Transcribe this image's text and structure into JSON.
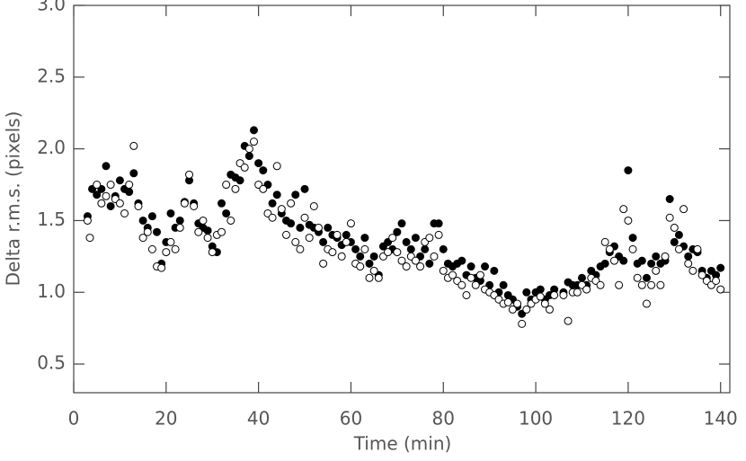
{
  "chart_data": {
    "type": "scatter",
    "x_label": "Time (min)",
    "y_label": "Delta r.m.s. (pixels)",
    "xlim": [
      0,
      142
    ],
    "ylim": [
      0.3,
      3.0
    ],
    "xticks": [
      0,
      20,
      40,
      60,
      80,
      100,
      120,
      140
    ],
    "yticks": [
      0.5,
      {
        "value": 1.0,
        "label": "1.0"
      },
      1.5,
      {
        "value": 2.0,
        "label": "2.0"
      },
      2.5,
      {
        "value": 3.0,
        "label": "3.0"
      }
    ],
    "series": [
      {
        "color": "#000000",
        "marker": "filled",
        "x": [
          3,
          4,
          5,
          6,
          7,
          8,
          9,
          10,
          11,
          12,
          13,
          14,
          15,
          16,
          17,
          18,
          19,
          20,
          21,
          22,
          23,
          24,
          25,
          26,
          27,
          28,
          29,
          30,
          31,
          32,
          33,
          34,
          35,
          36,
          37,
          38,
          39,
          40,
          41,
          42,
          43,
          44,
          45,
          46,
          47,
          48,
          49,
          50,
          51,
          52,
          53,
          54,
          55,
          56,
          57,
          58,
          59,
          60,
          61,
          62,
          63,
          64,
          65,
          66,
          67,
          68,
          69,
          70,
          71,
          72,
          73,
          74,
          75,
          76,
          77,
          78,
          79,
          80,
          81,
          82,
          83,
          84,
          85,
          86,
          87,
          88,
          89,
          90,
          91,
          92,
          93,
          94,
          95,
          96,
          97,
          98,
          99,
          100,
          101,
          102,
          103,
          104,
          106,
          107,
          108,
          109,
          110,
          111,
          112,
          113,
          114,
          115,
          116,
          117,
          118,
          119,
          120,
          121,
          122,
          123,
          124,
          125,
          126,
          127,
          128,
          129,
          130,
          131,
          132,
          133,
          134,
          135,
          136,
          137,
          138,
          139,
          140
        ],
        "values": [
          1.53,
          1.72,
          1.68,
          1.72,
          1.88,
          1.6,
          1.67,
          1.78,
          1.72,
          1.7,
          1.83,
          1.62,
          1.5,
          1.45,
          1.53,
          1.42,
          1.2,
          1.35,
          1.55,
          1.45,
          1.5,
          1.63,
          1.78,
          1.62,
          1.48,
          1.45,
          1.43,
          1.32,
          1.28,
          1.62,
          1.55,
          1.82,
          1.8,
          1.78,
          2.02,
          1.95,
          2.13,
          1.9,
          1.85,
          1.75,
          1.62,
          1.68,
          1.55,
          1.5,
          1.48,
          1.68,
          1.45,
          1.72,
          1.47,
          1.45,
          1.42,
          1.35,
          1.45,
          1.4,
          1.38,
          1.33,
          1.4,
          1.35,
          1.3,
          1.25,
          1.38,
          1.2,
          1.25,
          1.12,
          1.32,
          1.35,
          1.3,
          1.42,
          1.48,
          1.35,
          1.3,
          1.38,
          1.25,
          1.3,
          1.2,
          1.48,
          1.48,
          1.3,
          1.2,
          1.18,
          1.2,
          1.22,
          1.12,
          1.18,
          1.1,
          1.08,
          1.18,
          1.05,
          1.15,
          1.0,
          1.05,
          0.98,
          0.95,
          0.9,
          0.85,
          1.0,
          0.95,
          1.0,
          1.02,
          0.95,
          0.98,
          1.02,
          1.0,
          1.07,
          1.05,
          1.05,
          1.1,
          1.05,
          1.15,
          1.12,
          1.18,
          1.2,
          1.28,
          1.32,
          1.25,
          1.22,
          1.85,
          1.38,
          1.2,
          1.22,
          1.1,
          1.2,
          1.25,
          1.2,
          1.22,
          1.65,
          1.35,
          1.4,
          1.32,
          1.25,
          1.3,
          1.28,
          1.15,
          1.1,
          1.15,
          1.12,
          1.17
        ]
      },
      {
        "color": "#000000",
        "marker": "open",
        "x": [
          3,
          3.5,
          5,
          6,
          7,
          8,
          9,
          10,
          11,
          12,
          13,
          14,
          15,
          16,
          17,
          18,
          19,
          20,
          21,
          22,
          23,
          24,
          25,
          26,
          27,
          28,
          29,
          30,
          31,
          32,
          33,
          34,
          35,
          36,
          37,
          38,
          39,
          40,
          41,
          42,
          43,
          44,
          45,
          46,
          47,
          48,
          49,
          50,
          51,
          52,
          53,
          54,
          55,
          56,
          57,
          58,
          59,
          60,
          61,
          62,
          63,
          64,
          65,
          66,
          67,
          68,
          69,
          70,
          71,
          72,
          73,
          74,
          75,
          76,
          77,
          78,
          79,
          80,
          81,
          82,
          83,
          84,
          85,
          86,
          87,
          88,
          89,
          90,
          91,
          92,
          93,
          94,
          95,
          96,
          97,
          98,
          99,
          100,
          101,
          102,
          103,
          104,
          106,
          107,
          108,
          109,
          110,
          111,
          112,
          113,
          114,
          115,
          116,
          117,
          118,
          119,
          120,
          121,
          122,
          123,
          124,
          125,
          126,
          127,
          128,
          129,
          130,
          131,
          132,
          133,
          134,
          135,
          136,
          137,
          138,
          139,
          140
        ],
        "values": [
          1.5,
          1.38,
          1.75,
          1.62,
          1.67,
          1.75,
          1.65,
          1.62,
          1.55,
          1.75,
          2.02,
          1.6,
          1.38,
          1.42,
          1.3,
          1.18,
          1.17,
          1.28,
          1.35,
          1.3,
          1.45,
          1.62,
          1.82,
          1.6,
          1.42,
          1.5,
          1.38,
          1.28,
          1.4,
          1.42,
          1.75,
          1.5,
          1.72,
          1.9,
          1.87,
          2.0,
          2.05,
          1.75,
          1.72,
          1.55,
          1.52,
          1.88,
          1.58,
          1.4,
          1.62,
          1.35,
          1.3,
          1.52,
          1.38,
          1.6,
          1.45,
          1.2,
          1.3,
          1.28,
          1.4,
          1.25,
          1.35,
          1.48,
          1.2,
          1.18,
          1.3,
          1.1,
          1.15,
          1.1,
          1.25,
          1.28,
          1.38,
          1.28,
          1.22,
          1.18,
          1.25,
          1.22,
          1.18,
          1.35,
          1.38,
          1.25,
          1.4,
          1.15,
          1.1,
          1.12,
          1.08,
          1.05,
          0.98,
          1.1,
          1.05,
          1.12,
          1.02,
          1.0,
          0.98,
          0.95,
          0.92,
          0.93,
          0.88,
          0.92,
          0.78,
          0.88,
          0.92,
          0.95,
          0.97,
          0.92,
          0.88,
          0.98,
          0.98,
          0.8,
          1.0,
          1.0,
          1.05,
          1.02,
          1.1,
          1.08,
          1.05,
          1.35,
          1.3,
          1.22,
          1.05,
          1.58,
          1.5,
          1.3,
          1.1,
          1.05,
          0.92,
          1.05,
          1.15,
          1.05,
          1.25,
          1.52,
          1.45,
          1.3,
          1.58,
          1.2,
          1.15,
          1.3,
          1.12,
          1.08,
          1.05,
          1.08,
          1.02
        ]
      }
    ]
  }
}
